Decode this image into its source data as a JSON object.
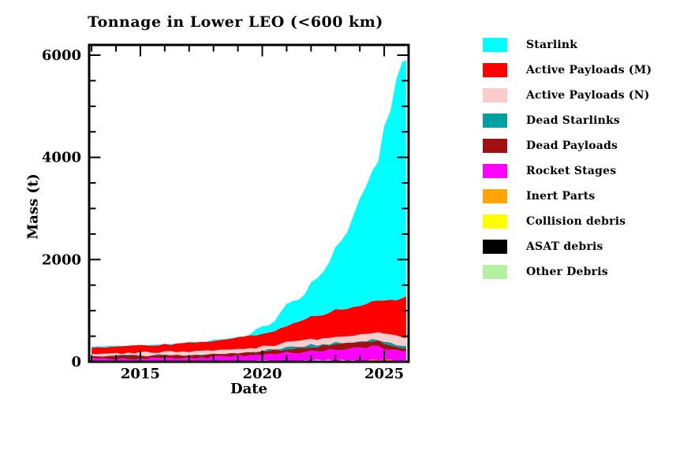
{
  "title": "Tonnage in Lower LEO (<600 km)",
  "chart_data": {
    "type": "area",
    "stacked": true,
    "title": "Tonnage in Lower LEO (<600 km)",
    "xlabel": "Date",
    "ylabel": "Mass (t)",
    "x_range": [
      2012.9,
      2026.0
    ],
    "y_range": [
      0,
      6200
    ],
    "x_ticks_major": [
      2015,
      2020,
      2025
    ],
    "x_ticks_minor_step": 1,
    "y_ticks_major": [
      0,
      2000,
      4000,
      6000
    ],
    "y_ticks_minor_step": 500,
    "grid": false,
    "legend_position": "right-outside",
    "x": [
      2013.0,
      2013.25,
      2013.5,
      2013.75,
      2014.0,
      2014.25,
      2014.5,
      2014.75,
      2015.0,
      2015.25,
      2015.5,
      2015.75,
      2016.0,
      2016.25,
      2016.5,
      2016.75,
      2017.0,
      2017.25,
      2017.5,
      2017.75,
      2018.0,
      2018.25,
      2018.5,
      2018.75,
      2019.0,
      2019.25,
      2019.5,
      2019.75,
      2020.0,
      2020.25,
      2020.5,
      2020.75,
      2021.0,
      2021.25,
      2021.5,
      2021.75,
      2022.0,
      2022.25,
      2022.5,
      2022.75,
      2023.0,
      2023.25,
      2023.5,
      2023.75,
      2024.0,
      2024.25,
      2024.5,
      2024.75,
      2025.0,
      2025.25,
      2025.5,
      2025.75,
      2025.9
    ],
    "series": [
      {
        "name": "Other Debris",
        "color": "#b2f0a2",
        "values": [
          3,
          3,
          3,
          3,
          3,
          3,
          3,
          3,
          3,
          3,
          3,
          3,
          3,
          3,
          3,
          3,
          3,
          3,
          3,
          3,
          3,
          3,
          3,
          3,
          3,
          3,
          3,
          3,
          3,
          3,
          3,
          3,
          3,
          3,
          3,
          3,
          3,
          3,
          3,
          3,
          3,
          3,
          3,
          3,
          3,
          3,
          3,
          3,
          3,
          3,
          3,
          3,
          3
        ]
      },
      {
        "name": "ASAT debris",
        "color": "#000000",
        "values": [
          2,
          2,
          2,
          2,
          2,
          2,
          2,
          2,
          2,
          2,
          2,
          2,
          2,
          2,
          2,
          2,
          2,
          2,
          2,
          2,
          2,
          2,
          2,
          2,
          2,
          2,
          2,
          2,
          2,
          2,
          2,
          2,
          2,
          2,
          2,
          2,
          4,
          4,
          4,
          4,
          4,
          4,
          4,
          4,
          4,
          4,
          4,
          4,
          4,
          4,
          4,
          4,
          4
        ]
      },
      {
        "name": "Collision debris",
        "color": "#ffff00",
        "values": [
          3,
          3,
          3,
          3,
          3,
          3,
          3,
          3,
          3,
          3,
          3,
          3,
          3,
          3,
          3,
          3,
          3,
          3,
          3,
          3,
          3,
          3,
          3,
          3,
          3,
          3,
          3,
          3,
          3,
          3,
          3,
          3,
          3,
          3,
          3,
          3,
          3,
          3,
          3,
          3,
          3,
          3,
          3,
          3,
          3,
          3,
          3,
          3,
          3,
          3,
          3,
          3,
          3
        ]
      },
      {
        "name": "Inert Parts",
        "color": "#ffa400",
        "values": [
          3,
          3,
          3,
          3,
          3,
          3,
          3,
          3,
          3,
          3,
          3,
          3,
          4,
          4,
          4,
          4,
          4,
          4,
          4,
          4,
          4,
          4,
          4,
          4,
          5,
          5,
          5,
          5,
          6,
          6,
          6,
          6,
          8,
          8,
          8,
          8,
          10,
          10,
          10,
          10,
          12,
          12,
          12,
          12,
          13,
          13,
          13,
          13,
          14,
          14,
          14,
          14,
          14
        ]
      },
      {
        "name": "Rocket Stages",
        "color": "#ff00ff",
        "values": [
          45,
          46,
          44,
          47,
          48,
          47,
          49,
          50,
          52,
          51,
          53,
          54,
          58,
          57,
          60,
          62,
          68,
          66,
          70,
          74,
          88,
          84,
          90,
          95,
          108,
          104,
          112,
          118,
          132,
          128,
          138,
          146,
          158,
          154,
          164,
          172,
          185,
          180,
          195,
          205,
          228,
          222,
          235,
          244,
          258,
          252,
          278,
          270,
          235,
          225,
          205,
          196,
          195
        ]
      },
      {
        "name": "Dead Payloads",
        "color": "#a01010",
        "values": [
          62,
          60,
          63,
          61,
          63,
          64,
          62,
          65,
          65,
          64,
          66,
          63,
          66,
          65,
          63,
          64,
          62,
          60,
          59,
          58,
          57,
          58,
          60,
          61,
          62,
          60,
          63,
          64,
          64,
          66,
          70,
          75,
          83,
          86,
          88,
          90,
          93,
          95,
          96,
          97,
          99,
          100,
          102,
          103,
          105,
          108,
          112,
          104,
          85,
          72,
          60,
          54,
          52
        ]
      },
      {
        "name": "Dead Starlinks",
        "color": "#00a0a0",
        "values": [
          0,
          0,
          0,
          0,
          0,
          0,
          0,
          0,
          0,
          0,
          0,
          0,
          0,
          0,
          0,
          0,
          0,
          0,
          0,
          0,
          0,
          0,
          0,
          0,
          0,
          0,
          0,
          8,
          18,
          20,
          24,
          26,
          28,
          29,
          30,
          31,
          32,
          33,
          33,
          34,
          34,
          33,
          32,
          32,
          32,
          33,
          35,
          38,
          45,
          46,
          47,
          48,
          48
        ]
      },
      {
        "name": "Active Payloads (N)",
        "color": "#facccb",
        "values": [
          47,
          48,
          49,
          50,
          50,
          51,
          52,
          52,
          53,
          54,
          55,
          56,
          57,
          58,
          60,
          61,
          63,
          65,
          67,
          69,
          72,
          73,
          74,
          74,
          75,
          75,
          76,
          76,
          77,
          80,
          85,
          92,
          100,
          106,
          112,
          118,
          123,
          123,
          124,
          124,
          124,
          124,
          125,
          125,
          125,
          126,
          130,
          138,
          150,
          154,
          158,
          160,
          160
        ]
      },
      {
        "name": "Active Payloads (M)",
        "color": "#ff0000",
        "values": [
          130,
          128,
          132,
          130,
          135,
          133,
          137,
          136,
          140,
          138,
          142,
          144,
          150,
          148,
          153,
          158,
          165,
          162,
          170,
          180,
          195,
          200,
          208,
          214,
          220,
          226,
          232,
          240,
          250,
          262,
          280,
          305,
          330,
          352,
          375,
          398,
          420,
          440,
          460,
          480,
          500,
          515,
          530,
          545,
          560,
          580,
          600,
          625,
          660,
          690,
          730,
          780,
          800
        ]
      },
      {
        "name": "Starlink",
        "color": "#00ffff",
        "values": [
          6,
          8,
          5,
          9,
          7,
          6,
          9,
          6,
          8,
          7,
          6,
          9,
          7,
          9,
          6,
          8,
          8,
          6,
          9,
          7,
          8,
          9,
          7,
          8,
          9,
          10,
          60,
          110,
          140,
          160,
          200,
          300,
          420,
          430,
          450,
          480,
          700,
          760,
          820,
          1000,
          1250,
          1350,
          1500,
          1800,
          2100,
          2300,
          2550,
          2700,
          3400,
          3700,
          4300,
          4600,
          4620
        ]
      }
    ]
  },
  "legend": {
    "items": [
      {
        "label": "Starlink",
        "color": "#00ffff"
      },
      {
        "label": "Active Payloads (M)",
        "color": "#ff0000"
      },
      {
        "label": "Active Payloads (N)",
        "color": "#facccb"
      },
      {
        "label": "Dead Starlinks",
        "color": "#00a0a0"
      },
      {
        "label": "Dead Payloads",
        "color": "#a01010"
      },
      {
        "label": "Rocket Stages",
        "color": "#ff00ff"
      },
      {
        "label": "Inert Parts",
        "color": "#ffa400"
      },
      {
        "label": "Collision debris",
        "color": "#ffff00"
      },
      {
        "label": "ASAT debris",
        "color": "#000000"
      },
      {
        "label": "Other Debris",
        "color": "#b2f0a2"
      }
    ]
  },
  "axis_tick_labels": {
    "x": [
      "2015",
      "2020",
      "2025"
    ],
    "y": [
      "0",
      "2000",
      "4000",
      "6000"
    ]
  }
}
